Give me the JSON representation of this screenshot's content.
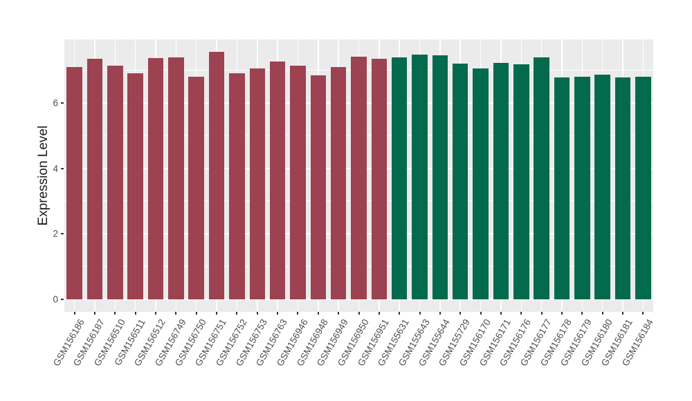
{
  "chart_data": {
    "type": "bar",
    "title": "",
    "xlabel": "",
    "ylabel": "Expression Level",
    "ylim": [
      -0.38,
      7.94
    ],
    "yticks": [
      0,
      2,
      4,
      6
    ],
    "yticks_minor": [
      1,
      3,
      5,
      7
    ],
    "grid": "on",
    "legend_position": "none",
    "panel_bg": "#EBEBEB",
    "grid_color": "#FFFFFF",
    "axis_text_color": "#4D4D4D",
    "axis_title_color": "#1A1A1A",
    "categories": [
      "GSM156186",
      "GSM156187",
      "GSM156510",
      "GSM156511",
      "GSM156512",
      "GSM156749",
      "GSM156750",
      "GSM156751",
      "GSM156752",
      "GSM156753",
      "GSM156763",
      "GSM156946",
      "GSM156948",
      "GSM156949",
      "GSM156950",
      "GSM156951",
      "GSM155631",
      "GSM155643",
      "GSM155644",
      "GSM155729",
      "GSM156170",
      "GSM156171",
      "GSM156176",
      "GSM156177",
      "GSM156178",
      "GSM156179",
      "GSM156180",
      "GSM156181",
      "GSM156184"
    ],
    "values": [
      7.1,
      7.35,
      7.13,
      6.9,
      7.38,
      7.39,
      6.79,
      7.57,
      6.9,
      7.05,
      7.26,
      7.14,
      6.84,
      7.1,
      7.42,
      7.34,
      7.39,
      7.48,
      7.46,
      7.2,
      7.05,
      7.22,
      7.18,
      7.39,
      6.77,
      6.79,
      6.87,
      6.77,
      6.79
    ],
    "groups": [
      "A",
      "A",
      "A",
      "A",
      "A",
      "A",
      "A",
      "A",
      "A",
      "A",
      "A",
      "A",
      "A",
      "A",
      "A",
      "A",
      "B",
      "B",
      "B",
      "B",
      "B",
      "B",
      "B",
      "B",
      "B",
      "B",
      "B",
      "B",
      "B"
    ],
    "group_colors": {
      "A": "#9C4251",
      "B": "#046A4E"
    }
  }
}
